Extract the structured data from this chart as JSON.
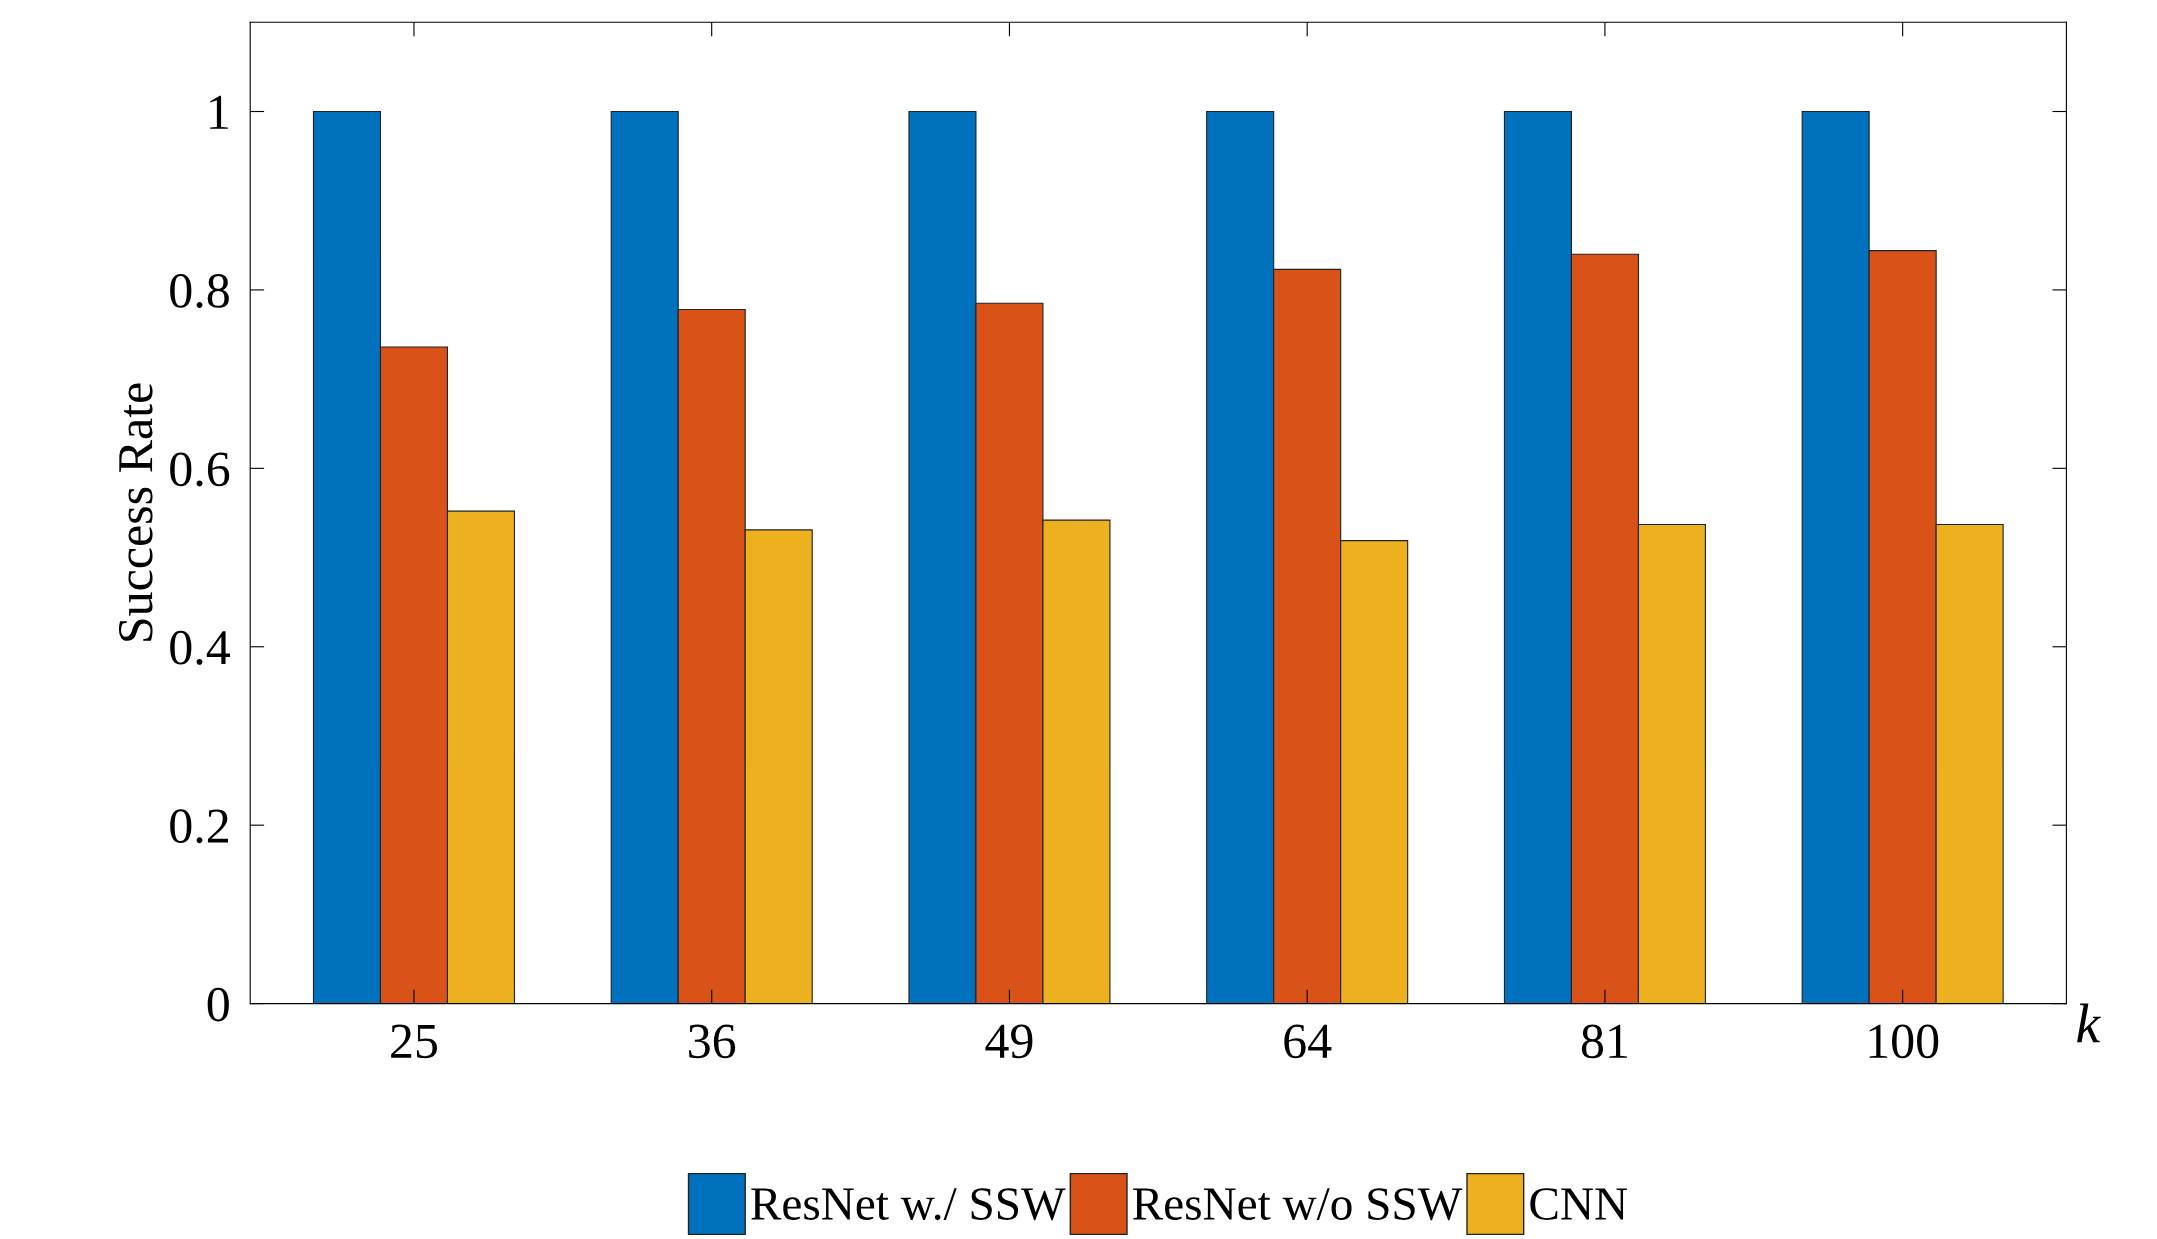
{
  "chart_data": {
    "type": "bar",
    "xlabel": "k",
    "ylabel": "Success Rate",
    "categories": [
      "25",
      "36",
      "49",
      "64",
      "81",
      "100"
    ],
    "series": [
      {
        "name": "ResNet w./ SSW",
        "color": "#0072bd",
        "values": [
          1,
          1,
          1,
          1,
          1,
          1
        ]
      },
      {
        "name": "ResNet w/o SSW",
        "color": "#d95319",
        "values": [
          0.736,
          0.778,
          0.785,
          0.823,
          0.84,
          0.844
        ]
      },
      {
        "name": "CNN",
        "color": "#edb120",
        "values": [
          0.552,
          0.531,
          0.542,
          0.519,
          0.537,
          0.537
        ]
      }
    ],
    "ylim": [
      0,
      1.1
    ],
    "yticks": [
      0,
      0.2,
      0.4,
      0.6,
      0.8,
      1
    ],
    "grid": false,
    "legend": "bottom"
  }
}
